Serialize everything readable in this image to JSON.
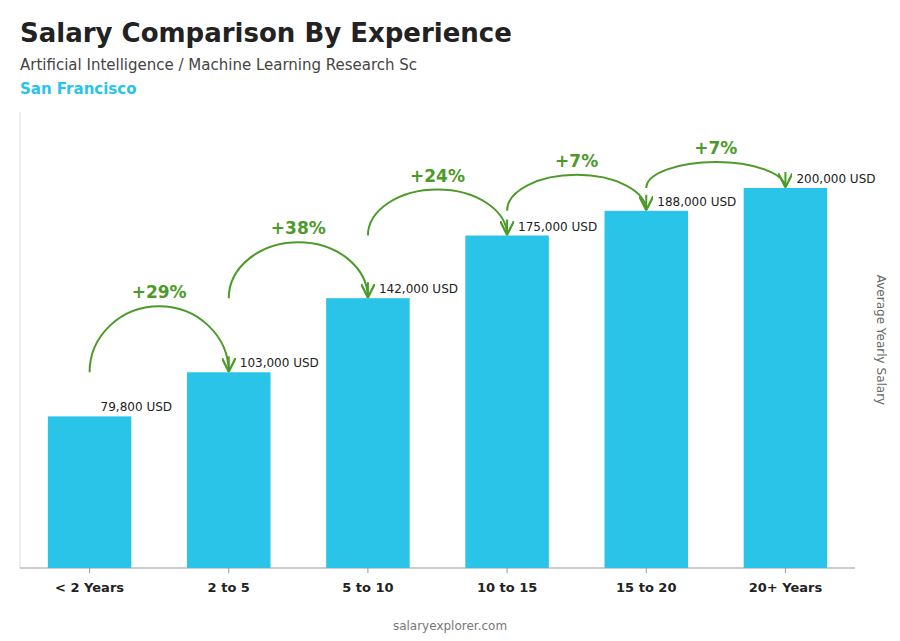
{
  "chart_data": {
    "type": "bar",
    "title": "Salary Comparison By Experience",
    "subtitle": "Artificial Intelligence / Machine Learning Research Sc",
    "y_label": "Average Yearly Salary",
    "annotations": [
      "San Francisco",
      "salaryexplorer.com"
    ],
    "categories": [
      "< 2 Years",
      "2 to 5",
      "5 to 10",
      "10 to 15",
      "15 to 20",
      "20+ Years"
    ],
    "values": [
      79800,
      103000,
      142000,
      175000,
      188000,
      200000
    ],
    "value_labels": [
      "79,800 USD",
      "103,000 USD",
      "142,000 USD",
      "175,000 USD",
      "188,000 USD",
      "200,000 USD"
    ],
    "data_labels": true,
    "change_labels": [
      "+29%",
      "+38%",
      "+24%",
      "+7%",
      "+7%"
    ],
    "color": "#29c4e8",
    "ylim": [
      0,
      240000
    ],
    "tick_labels": "x",
    "grid": false
  }
}
